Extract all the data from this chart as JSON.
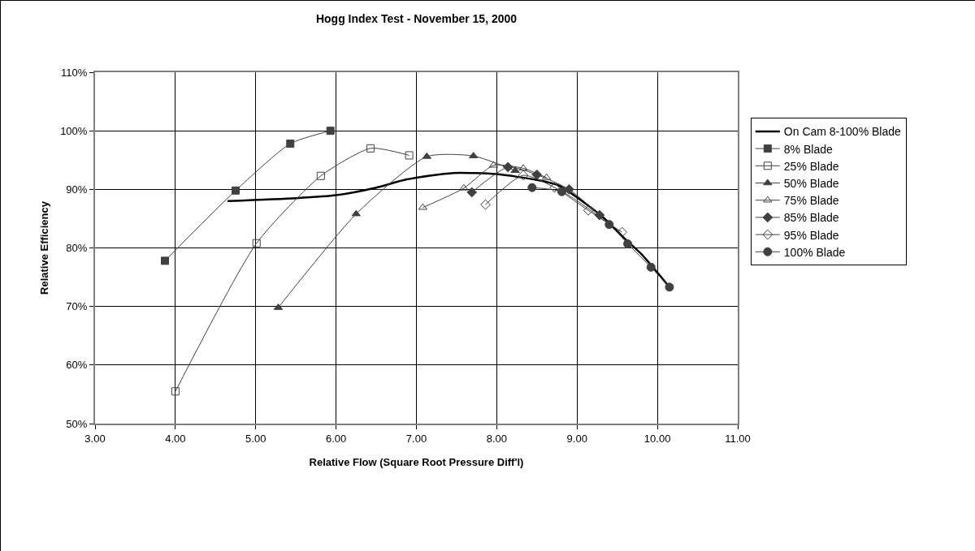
{
  "chart_data": {
    "type": "line",
    "title": "Hogg Index Test - November 15, 2000",
    "xlabel": "Relative Flow (Square Root Pressure Diff'l)",
    "ylabel": "Relative Efficiency",
    "xlim": [
      3,
      11
    ],
    "xticks": [
      {
        "value": 3,
        "label": "3.00"
      },
      {
        "value": 4,
        "label": "4.00"
      },
      {
        "value": 5,
        "label": "5.00"
      },
      {
        "value": 6,
        "label": "6.00"
      },
      {
        "value": 7,
        "label": "7.00"
      },
      {
        "value": 8,
        "label": "8.00"
      },
      {
        "value": 9,
        "label": "9.00"
      },
      {
        "value": 10,
        "label": "10.00"
      },
      {
        "value": 11,
        "label": "11.00"
      }
    ],
    "ylim": [
      50,
      110
    ],
    "yticks": [
      {
        "value": 50,
        "label": "50%"
      },
      {
        "value": 60,
        "label": "60%"
      },
      {
        "value": 70,
        "label": "70%"
      },
      {
        "value": 80,
        "label": "80%"
      },
      {
        "value": 90,
        "label": "90%"
      },
      {
        "value": 100,
        "label": "100%"
      },
      {
        "value": 110,
        "label": "110%"
      }
    ],
    "grid": true,
    "legend": "right",
    "line_style": "solid",
    "series": [
      {
        "name": "On Cam 8-100% Blade",
        "color": "#000000",
        "marker": "none",
        "x": [
          4.65,
          5.5,
          6.0,
          6.5,
          6.88,
          7.46,
          8.0,
          8.5,
          8.78,
          9.3,
          9.6,
          9.81,
          10.15
        ],
        "values": [
          88.0,
          88.5,
          89.0,
          90.3,
          91.7,
          92.8,
          92.6,
          91.6,
          90.6,
          85.5,
          81.5,
          78.8,
          73.3
        ]
      },
      {
        "name": "8% Blade",
        "color": "#404040",
        "marker": "square",
        "x": [
          3.87,
          4.75,
          5.43,
          5.93
        ],
        "values": [
          77.8,
          89.8,
          97.8,
          100.0
        ]
      },
      {
        "name": "25% Blade",
        "color": "#404040",
        "marker": "square",
        "x": [
          4.0,
          5.01,
          5.81,
          6.43,
          6.91
        ],
        "values": [
          55.5,
          80.8,
          92.3,
          97.0,
          95.8
        ]
      },
      {
        "name": "50% Blade",
        "color": "#404040",
        "marker": "triangle",
        "x": [
          5.28,
          6.25,
          7.13,
          7.71,
          8.23
        ],
        "values": [
          69.8,
          85.8,
          95.6,
          95.7,
          93.2
        ]
      },
      {
        "name": "75% Blade",
        "color": "#404040",
        "marker": "triangle",
        "x": [
          7.08,
          7.59,
          7.96,
          8.33,
          8.62
        ],
        "values": [
          86.9,
          90.2,
          94.1,
          93.6,
          92.0
        ]
      },
      {
        "name": "85% Blade",
        "color": "#404040",
        "marker": "diamond",
        "x": [
          7.69,
          8.14,
          8.5,
          8.9,
          9.28
        ],
        "values": [
          89.5,
          93.8,
          92.5,
          90.0,
          85.6
        ]
      },
      {
        "name": "95% Blade",
        "color": "#404040",
        "marker": "diamond",
        "x": [
          7.86,
          8.33,
          8.72,
          9.14,
          9.56
        ],
        "values": [
          87.4,
          92.4,
          90.3,
          86.4,
          82.7
        ]
      },
      {
        "name": "100% Blade",
        "color": "#404040",
        "marker": "circle",
        "x": [
          8.44,
          8.81,
          9.4,
          9.63,
          9.92,
          10.15
        ],
        "values": [
          90.3,
          89.6,
          84.0,
          80.7,
          76.7,
          73.3
        ]
      }
    ]
  }
}
